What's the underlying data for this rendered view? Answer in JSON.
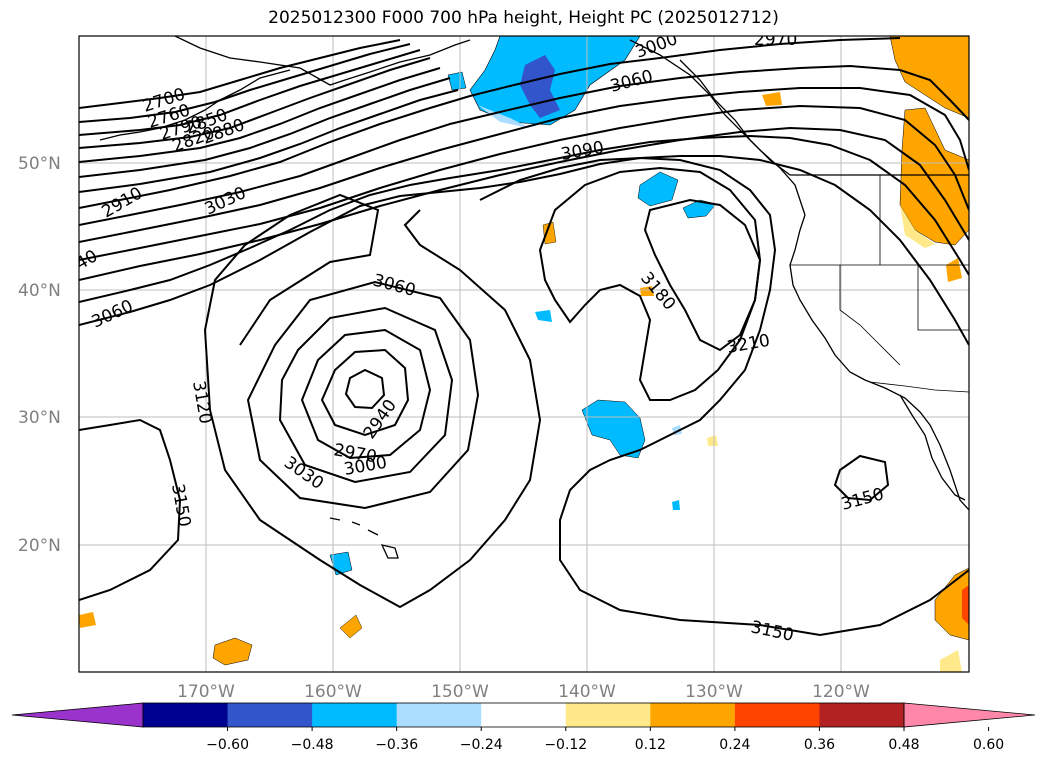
{
  "title": "2025012300 F000 700 hPa height, Height PC (2025012712)",
  "lat_labels": [
    "50°N",
    "40°N",
    "30°N",
    "20°N"
  ],
  "lon_labels": [
    "170°W",
    "160°W",
    "150°W",
    "140°W",
    "130°W",
    "120°W"
  ],
  "contour_labels": [
    "2700",
    "2760",
    "2790",
    "2820",
    "2850",
    "2880",
    "2910",
    "3030",
    "3060",
    "3060",
    "3060",
    "3090",
    "3120",
    "3150",
    "3180",
    "3210",
    "3150",
    "3150",
    "2940",
    "2970",
    "3000",
    "3030",
    "2970",
    "3000",
    "40"
  ],
  "colorbar": {
    "colors": [
      "#9933cc",
      "#000090",
      "#3355cc",
      "#00bbff",
      "#aaddff",
      "#ffffff",
      "#ffe98a",
      "#ffa500",
      "#ff4400",
      "#b22222",
      "#ff88aa"
    ],
    "tick_labels": [
      "−0.60",
      "−0.48",
      "−0.36",
      "−0.24",
      "−0.12",
      "0.12",
      "0.24",
      "0.36",
      "0.48",
      "0.60"
    ]
  },
  "anomaly_colors": {
    "blue": "#00bbff",
    "light_blue": "#aaddff",
    "medium_blue": "#3355cc",
    "orange": "#ffa500",
    "yellow": "#ffe98a",
    "red": "#ff4400"
  }
}
